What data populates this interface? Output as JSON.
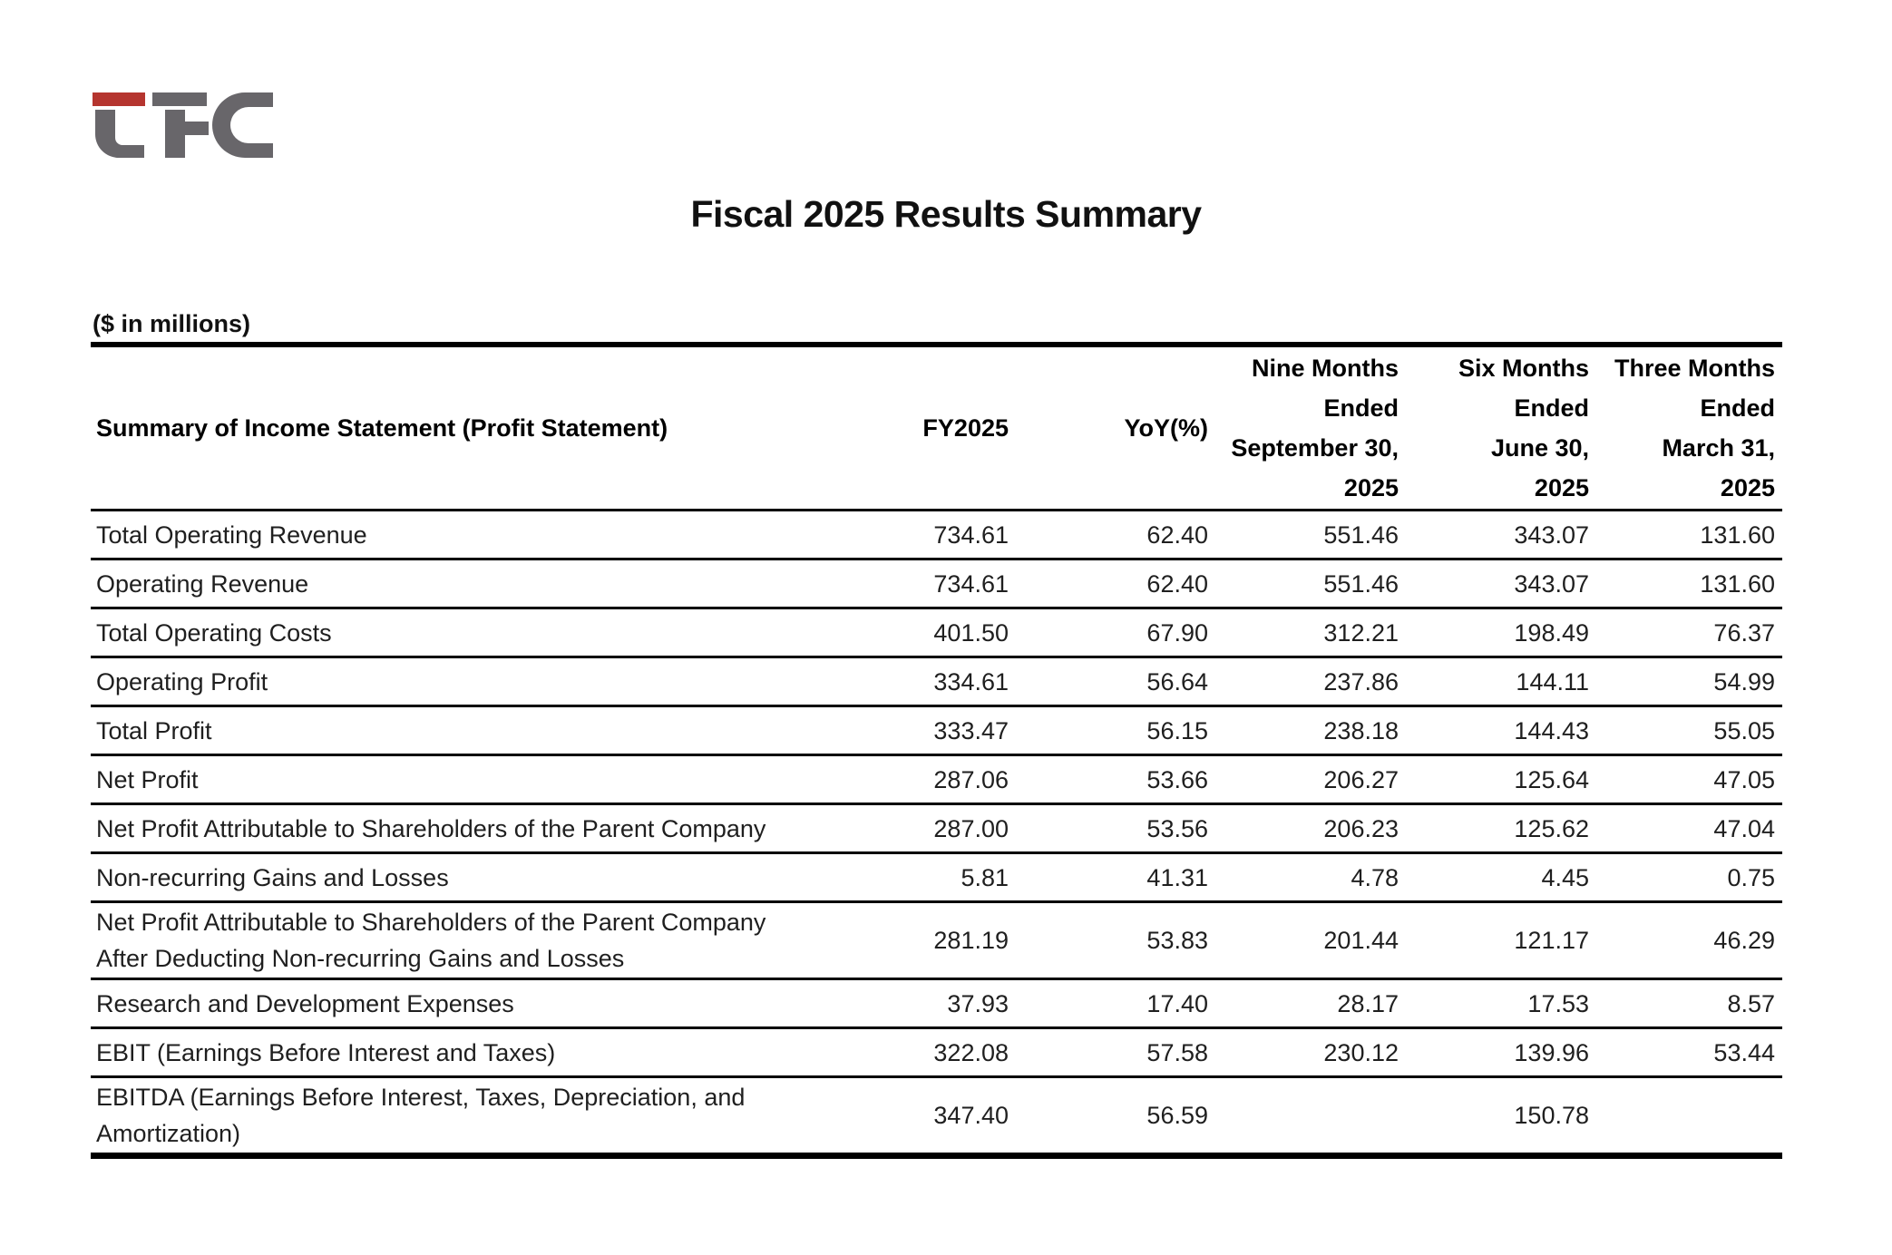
{
  "page": {
    "title": "Fiscal 2025 Results Summary",
    "units_note": "($ in millions)",
    "logo": {
      "name": "LFC company logo",
      "accent_red": "#b5352f",
      "gray": "#68666a"
    }
  },
  "table": {
    "header": {
      "label": "Summary of Income Statement (Profit Statement)",
      "columns": [
        {
          "label": "FY2025"
        },
        {
          "label": "YoY(%)"
        },
        {
          "label": "Nine Months\nEnded\nSeptember 30,\n2025"
        },
        {
          "label": "Six Months\nEnded\nJune 30,\n2025"
        },
        {
          "label": "Three Months\nEnded\nMarch 31,\n2025"
        }
      ]
    },
    "rows": [
      {
        "label": "Total Operating Revenue",
        "values": [
          "734.61",
          "62.40",
          "551.46",
          "343.07",
          "131.60"
        ]
      },
      {
        "label": "Operating Revenue",
        "values": [
          "734.61",
          "62.40",
          "551.46",
          "343.07",
          "131.60"
        ]
      },
      {
        "label": "Total Operating Costs",
        "values": [
          "401.50",
          "67.90",
          "312.21",
          "198.49",
          "76.37"
        ]
      },
      {
        "label": "Operating Profit",
        "values": [
          "334.61",
          "56.64",
          "237.86",
          "144.11",
          "54.99"
        ]
      },
      {
        "label": "Total Profit",
        "values": [
          "333.47",
          "56.15",
          "238.18",
          "144.43",
          "55.05"
        ]
      },
      {
        "label": "Net Profit",
        "values": [
          "287.06",
          "53.66",
          "206.27",
          "125.64",
          "47.05"
        ]
      },
      {
        "label": "Net Profit Attributable to Shareholders of the Parent Company",
        "values": [
          "287.00",
          "53.56",
          "206.23",
          "125.62",
          "47.04"
        ]
      },
      {
        "label": "Non-recurring Gains and Losses",
        "values": [
          "5.81",
          "41.31",
          "4.78",
          "4.45",
          "0.75"
        ]
      },
      {
        "label": "Net Profit Attributable to Shareholders of the Parent Company\nAfter Deducting Non-recurring Gains and Losses",
        "values": [
          "281.19",
          "53.83",
          "201.44",
          "121.17",
          "46.29"
        ]
      },
      {
        "label": "Research and Development Expenses",
        "values": [
          "37.93",
          "17.40",
          "28.17",
          "17.53",
          "8.57"
        ]
      },
      {
        "label": "EBIT (Earnings Before Interest and Taxes)",
        "values": [
          "322.08",
          "57.58",
          "230.12",
          "139.96",
          "53.44"
        ]
      },
      {
        "label": "EBITDA (Earnings Before Interest, Taxes, Depreciation, and\nAmortization)",
        "values": [
          "347.40",
          "56.59",
          "",
          "150.78",
          ""
        ]
      }
    ]
  }
}
